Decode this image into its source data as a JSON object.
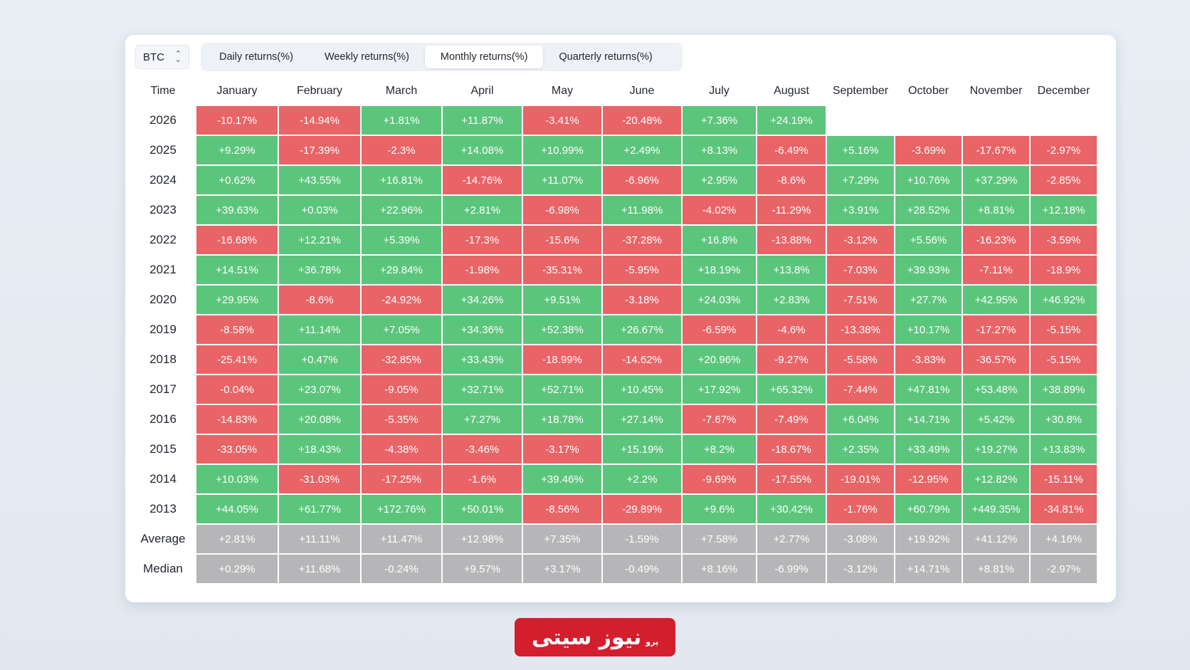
{
  "coin_selector": {
    "value": "BTC"
  },
  "tabs": [
    {
      "label": "Daily returns(%)",
      "active": false
    },
    {
      "label": "Weekly returns(%)",
      "active": false
    },
    {
      "label": "Monthly returns(%)",
      "active": true
    },
    {
      "label": "Quarterly returns(%)",
      "active": false
    }
  ],
  "table": {
    "corner_label": "Time",
    "months": [
      "January",
      "February",
      "March",
      "April",
      "May",
      "June",
      "July",
      "August",
      "September",
      "October",
      "November",
      "December"
    ],
    "rows": [
      {
        "label": "2026",
        "values": [
          "-10.17%",
          "-14.94%",
          "+1.81%",
          "+11.87%",
          "-3.41%",
          "-20.48%",
          "+7.36%",
          "+24.19%",
          "",
          "",
          "",
          ""
        ]
      },
      {
        "label": "2025",
        "values": [
          "+9.29%",
          "-17.39%",
          "-2.3%",
          "+14.08%",
          "+10.99%",
          "+2.49%",
          "+8.13%",
          "-6.49%",
          "+5.16%",
          "-3.69%",
          "-17.67%",
          "-2.97%"
        ]
      },
      {
        "label": "2024",
        "values": [
          "+0.62%",
          "+43.55%",
          "+16.81%",
          "-14.76%",
          "+11.07%",
          "-6.96%",
          "+2.95%",
          "-8.6%",
          "+7.29%",
          "+10.76%",
          "+37.29%",
          "-2.85%"
        ]
      },
      {
        "label": "2023",
        "values": [
          "+39.63%",
          "+0.03%",
          "+22.96%",
          "+2.81%",
          "-6.98%",
          "+11.98%",
          "-4.02%",
          "-11.29%",
          "+3.91%",
          "+28.52%",
          "+8.81%",
          "+12.18%"
        ]
      },
      {
        "label": "2022",
        "values": [
          "-16.68%",
          "+12.21%",
          "+5.39%",
          "-17.3%",
          "-15.6%",
          "-37.28%",
          "+16.8%",
          "-13.88%",
          "-3.12%",
          "+5.56%",
          "-16.23%",
          "-3.59%"
        ]
      },
      {
        "label": "2021",
        "values": [
          "+14.51%",
          "+36.78%",
          "+29.84%",
          "-1.98%",
          "-35.31%",
          "-5.95%",
          "+18.19%",
          "+13.8%",
          "-7.03%",
          "+39.93%",
          "-7.11%",
          "-18.9%"
        ]
      },
      {
        "label": "2020",
        "values": [
          "+29.95%",
          "-8.6%",
          "-24.92%",
          "+34.26%",
          "+9.51%",
          "-3.18%",
          "+24.03%",
          "+2.83%",
          "-7.51%",
          "+27.7%",
          "+42.95%",
          "+46.92%"
        ]
      },
      {
        "label": "2019",
        "values": [
          "-8.58%",
          "+11.14%",
          "+7.05%",
          "+34.36%",
          "+52.38%",
          "+26.67%",
          "-6.59%",
          "-4.6%",
          "-13.38%",
          "+10.17%",
          "-17.27%",
          "-5.15%"
        ]
      },
      {
        "label": "2018",
        "values": [
          "-25.41%",
          "+0.47%",
          "-32.85%",
          "+33.43%",
          "-18.99%",
          "-14.62%",
          "+20.96%",
          "-9.27%",
          "-5.58%",
          "-3.83%",
          "-36.57%",
          "-5.15%"
        ]
      },
      {
        "label": "2017",
        "values": [
          "-0.04%",
          "+23.07%",
          "-9.05%",
          "+32.71%",
          "+52.71%",
          "+10.45%",
          "+17.92%",
          "+65.32%",
          "-7.44%",
          "+47.81%",
          "+53.48%",
          "+38.89%"
        ]
      },
      {
        "label": "2016",
        "values": [
          "-14.83%",
          "+20.08%",
          "-5.35%",
          "+7.27%",
          "+18.78%",
          "+27.14%",
          "-7.67%",
          "-7.49%",
          "+6.04%",
          "+14.71%",
          "+5.42%",
          "+30.8%"
        ]
      },
      {
        "label": "2015",
        "values": [
          "-33.05%",
          "+18.43%",
          "-4.38%",
          "-3.46%",
          "-3.17%",
          "+15.19%",
          "+8.2%",
          "-18.67%",
          "+2.35%",
          "+33.49%",
          "+19.27%",
          "+13.83%"
        ]
      },
      {
        "label": "2014",
        "values": [
          "+10.03%",
          "-31.03%",
          "-17.25%",
          "-1.6%",
          "+39.46%",
          "+2.2%",
          "-9.69%",
          "-17.55%",
          "-19.01%",
          "-12.95%",
          "+12.82%",
          "-15.11%"
        ]
      },
      {
        "label": "2013",
        "values": [
          "+44.05%",
          "+61.77%",
          "+172.76%",
          "+50.01%",
          "-8.56%",
          "-29.89%",
          "+9.6%",
          "+30.42%",
          "-1.76%",
          "+60.79%",
          "+449.35%",
          "-34.81%"
        ]
      }
    ],
    "summary_rows": [
      {
        "label": "Average",
        "values": [
          "+2.81%",
          "+11.11%",
          "+11.47%",
          "+12.98%",
          "+7.35%",
          "-1.59%",
          "+7.58%",
          "+2.77%",
          "-3.08%",
          "+19.92%",
          "+41.12%",
          "+4.16%"
        ]
      },
      {
        "label": "Median",
        "values": [
          "+0.29%",
          "+11.68%",
          "-0.24%",
          "+9.57%",
          "+3.17%",
          "-0.49%",
          "+8.16%",
          "-6.99%",
          "-3.12%",
          "+14.71%",
          "+8.81%",
          "-2.97%"
        ]
      }
    ]
  },
  "colors": {
    "positive": "#5cc57c",
    "negative": "#e86467",
    "summary": "#b6b6b8"
  },
  "watermark": {
    "text": "نیوز سیتی",
    "small": "پرو"
  }
}
